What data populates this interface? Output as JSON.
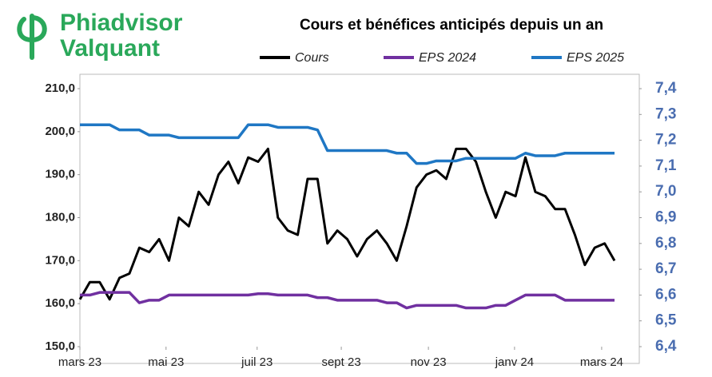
{
  "brand": {
    "line1": "Phiadvisor",
    "line2": "Valquant"
  },
  "chart_data": {
    "type": "line",
    "title": "Cours et bénéfices anticipés depuis un an",
    "xlim": [
      0,
      56.5
    ],
    "xticks": [
      {
        "value": 0,
        "label": "mars 23"
      },
      {
        "value": 8.7,
        "label": "mai 23"
      },
      {
        "value": 17.9,
        "label": "juil 23"
      },
      {
        "value": 26.4,
        "label": "sept 23"
      },
      {
        "value": 35.2,
        "label": "nov 23"
      },
      {
        "value": 43.9,
        "label": "janv 24"
      },
      {
        "value": 52.7,
        "label": "mars 24"
      }
    ],
    "ylim": [
      150,
      210
    ],
    "yticks": [
      {
        "value": 150,
        "label": "150,0"
      },
      {
        "value": 160,
        "label": "160,0"
      },
      {
        "value": 170,
        "label": "170,0"
      },
      {
        "value": 180,
        "label": "180,0"
      },
      {
        "value": 190,
        "label": "190,0"
      },
      {
        "value": 200,
        "label": "200,0"
      },
      {
        "value": 210,
        "label": "210,0"
      }
    ],
    "y2lim": [
      6.4,
      7.4
    ],
    "y2ticks": [
      {
        "value": 6.4,
        "label": "6,4"
      },
      {
        "value": 6.5,
        "label": "6,5"
      },
      {
        "value": 6.6,
        "label": "6,6"
      },
      {
        "value": 6.7,
        "label": "6,7"
      },
      {
        "value": 6.8,
        "label": "6,8"
      },
      {
        "value": 6.9,
        "label": "6,9"
      },
      {
        "value": 7.0,
        "label": "7,0"
      },
      {
        "value": 7.1,
        "label": "7,1"
      },
      {
        "value": 7.2,
        "label": "7,2"
      },
      {
        "value": 7.3,
        "label": "7,3"
      },
      {
        "value": 7.4,
        "label": "7,4"
      }
    ],
    "series": [
      {
        "name": "Cours",
        "color": "#000000",
        "values": [
          161,
          165,
          165,
          161,
          166,
          167,
          173,
          172,
          175,
          170,
          180,
          178,
          186,
          183,
          190,
          193,
          188,
          194,
          193,
          196,
          180,
          177,
          176,
          189,
          189,
          174,
          177,
          175,
          171,
          175,
          177,
          174,
          170,
          178,
          187,
          190,
          191,
          189,
          196,
          196,
          193,
          186,
          180,
          186,
          185,
          194,
          186,
          185,
          182,
          182,
          176,
          169,
          173,
          174,
          170
        ]
      },
      {
        "name": "EPS 2024",
        "color": "#7030a0",
        "axis": "y2",
        "values": [
          6.6,
          6.6,
          6.61,
          6.61,
          6.61,
          6.61,
          6.57,
          6.58,
          6.58,
          6.6,
          6.6,
          6.6,
          6.6,
          6.6,
          6.6,
          6.6,
          6.6,
          6.6,
          6.605,
          6.605,
          6.6,
          6.6,
          6.6,
          6.6,
          6.59,
          6.59,
          6.58,
          6.58,
          6.58,
          6.58,
          6.58,
          6.57,
          6.57,
          6.55,
          6.56,
          6.56,
          6.56,
          6.56,
          6.56,
          6.55,
          6.55,
          6.55,
          6.56,
          6.56,
          6.58,
          6.6,
          6.6,
          6.6,
          6.6,
          6.58,
          6.58,
          6.58,
          6.58,
          6.58,
          6.58
        ]
      },
      {
        "name": "EPS 2025",
        "color": "#1f77c4",
        "axis": "y2",
        "values": [
          7.26,
          7.26,
          7.26,
          7.26,
          7.24,
          7.24,
          7.24,
          7.22,
          7.22,
          7.22,
          7.21,
          7.21,
          7.21,
          7.21,
          7.21,
          7.21,
          7.21,
          7.26,
          7.26,
          7.26,
          7.25,
          7.25,
          7.25,
          7.25,
          7.24,
          7.16,
          7.16,
          7.16,
          7.16,
          7.16,
          7.16,
          7.16,
          7.15,
          7.15,
          7.11,
          7.11,
          7.12,
          7.12,
          7.12,
          7.13,
          7.13,
          7.13,
          7.13,
          7.13,
          7.13,
          7.15,
          7.14,
          7.14,
          7.14,
          7.15,
          7.15,
          7.15,
          7.15,
          7.15,
          7.15
        ]
      }
    ]
  }
}
